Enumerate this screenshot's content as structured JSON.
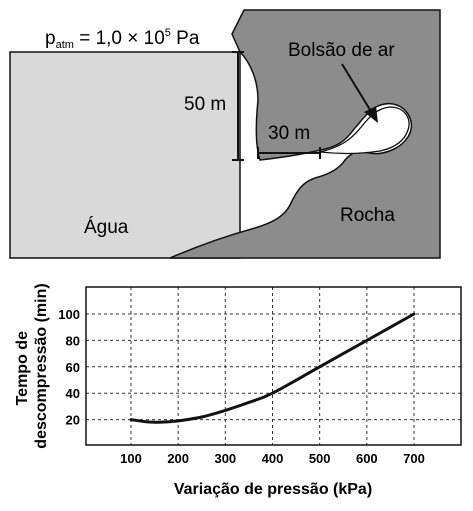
{
  "diagram": {
    "patm_base": "p",
    "patm_sub": "atm",
    "patm_rest": " = 1,0 × 10",
    "patm_exp": "5",
    "patm_unit": " Pa",
    "air_pocket_label": "Bolsão de ar",
    "depth_label": "50 m",
    "distance_label": "30 m",
    "water_label": "Água",
    "rock_label": "Rocha",
    "colors": {
      "rock": "#8c8c8c",
      "water": "#d9d9d9",
      "air": "#ffffff",
      "line": "#111111"
    }
  },
  "chart_data": {
    "type": "line",
    "xlabel": "Variação de pressão (kPa)",
    "ylabel_line1": "Tempo de",
    "ylabel_line2": "descompressão  (min)",
    "xlim": [
      100,
      700
    ],
    "ylim": [
      0,
      100
    ],
    "x_ticks": [
      100,
      200,
      300,
      400,
      500,
      600,
      700
    ],
    "y_ticks": [
      20,
      40,
      60,
      80,
      100
    ],
    "grid": "dashed",
    "series": [
      {
        "x": [
          100,
          130,
          160,
          200,
          250,
          300,
          350,
          400,
          500,
          600,
          700
        ],
        "y": [
          20,
          18.5,
          18,
          19,
          22,
          27,
          33,
          40,
          60,
          80,
          100
        ]
      }
    ]
  }
}
